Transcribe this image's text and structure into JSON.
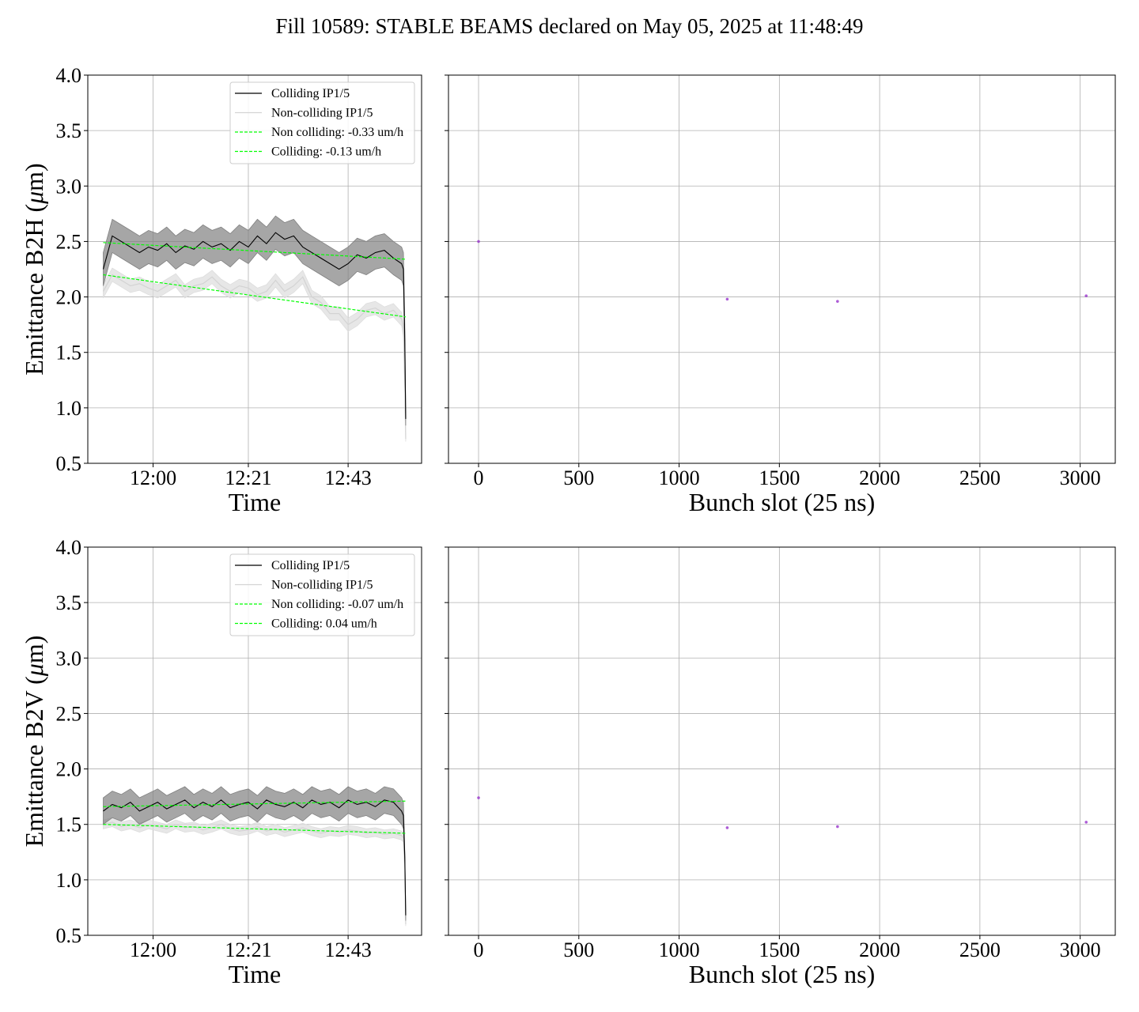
{
  "suptitle": "Fill 10589: STABLE BEAMS declared on May 05, 2025 at 11:48:49",
  "colors": {
    "colliding": "#000000",
    "colliding_band": "#808080",
    "noncolliding": "#d3d3d3",
    "noncolliding_band": "#dddddd",
    "fit": "#00ff00",
    "bunch_marker": "#9933cc",
    "grid": "#b0b0b0"
  },
  "chart_data": [
    {
      "type": "line",
      "ylabel_plain": "Emittance B2H (",
      "ylabel_mu": "μ",
      "ylabel_unit": "m)",
      "xlabel": "Time",
      "x_ticks": [
        "12:00",
        "12:21",
        "12:43"
      ],
      "x_tick_minutes": [
        0,
        21,
        43
      ],
      "xlim_minutes": [
        -14.4,
        59.2
      ],
      "ylim": [
        0.5,
        4.0
      ],
      "y_ticks": [
        "0.5",
        "1.0",
        "1.5",
        "2.0",
        "2.5",
        "3.0",
        "3.5",
        "4.0"
      ],
      "legend_position": "upper-right",
      "legend": [
        "Colliding IP1/5",
        "Non-colliding IP1/5",
        "Non colliding: -0.33 um/h",
        "Colliding: -0.13 um/h"
      ],
      "colliding": {
        "x_minutes": [
          -11,
          -9,
          -7,
          -5,
          -3,
          -1,
          1,
          3,
          5,
          7,
          9,
          11,
          13,
          15,
          17,
          19,
          21,
          23,
          25,
          27,
          29,
          31,
          33,
          35,
          37,
          39,
          41,
          43,
          45,
          47,
          49,
          51,
          53,
          54.8,
          55.2,
          55.5,
          55.7
        ],
        "y": [
          2.25,
          2.55,
          2.5,
          2.45,
          2.4,
          2.45,
          2.42,
          2.48,
          2.4,
          2.46,
          2.43,
          2.5,
          2.45,
          2.48,
          2.42,
          2.5,
          2.45,
          2.55,
          2.48,
          2.58,
          2.52,
          2.55,
          2.45,
          2.4,
          2.35,
          2.3,
          2.25,
          2.3,
          2.38,
          2.35,
          2.4,
          2.42,
          2.35,
          2.3,
          2.25,
          1.6,
          0.9
        ],
        "band": 0.15
      },
      "noncolliding": {
        "x_minutes": [
          -11,
          -9,
          -7,
          -5,
          -3,
          -1,
          1,
          3,
          5,
          7,
          9,
          11,
          13,
          15,
          17,
          19,
          21,
          23,
          25,
          27,
          29,
          31,
          33,
          35,
          37,
          39,
          41,
          43,
          45,
          47,
          49,
          51,
          53,
          54.8,
          55.2,
          55.5,
          55.7
        ],
        "y": [
          2.05,
          2.2,
          2.15,
          2.1,
          2.12,
          2.08,
          2.05,
          2.1,
          2.15,
          2.05,
          2.1,
          2.12,
          2.18,
          2.1,
          2.05,
          2.1,
          2.08,
          2.02,
          2.05,
          2.15,
          2.05,
          2.1,
          2.18,
          2.0,
          1.95,
          1.85,
          1.85,
          1.75,
          1.8,
          1.88,
          1.9,
          1.85,
          1.88,
          1.8,
          1.7,
          1.2,
          0.72
        ],
        "band": 0.06
      },
      "fit_noncolliding": {
        "x_minutes": [
          -11,
          55.7
        ],
        "y": [
          2.2,
          1.82
        ]
      },
      "fit_colliding": {
        "x_minutes": [
          -11,
          55.7
        ],
        "y": [
          2.49,
          2.34
        ]
      }
    },
    {
      "type": "scatter",
      "xlabel": "Bunch slot (25 ns)",
      "xlim": [
        -150,
        3175
      ],
      "x_ticks": [
        "0",
        "500",
        "1000",
        "1500",
        "2000",
        "2500",
        "3000"
      ],
      "x_tick_values": [
        0,
        500,
        1000,
        1500,
        2000,
        2500,
        3000
      ],
      "ylim": [
        0.5,
        4.0
      ],
      "y_tick_values": [
        0.5,
        1.0,
        1.5,
        2.0,
        2.5,
        3.0,
        3.5,
        4.0
      ],
      "points": [
        {
          "x": 0,
          "y": 2.5
        },
        {
          "x": 1240,
          "y": 1.98
        },
        {
          "x": 1790,
          "y": 1.96
        },
        {
          "x": 3030,
          "y": 2.01
        }
      ]
    },
    {
      "type": "line",
      "ylabel_plain": "Emittance B2V (",
      "ylabel_mu": "μ",
      "ylabel_unit": "m)",
      "xlabel": "Time",
      "x_ticks": [
        "12:00",
        "12:21",
        "12:43"
      ],
      "x_tick_minutes": [
        0,
        21,
        43
      ],
      "xlim_minutes": [
        -14.4,
        59.2
      ],
      "ylim": [
        0.5,
        4.0
      ],
      "y_ticks": [
        "0.5",
        "1.0",
        "1.5",
        "2.0",
        "2.5",
        "3.0",
        "3.5",
        "4.0"
      ],
      "legend_position": "upper-right",
      "legend": [
        "Colliding IP1/5",
        "Non-colliding IP1/5",
        "Non colliding: -0.07 um/h",
        "Colliding: 0.04 um/h"
      ],
      "colliding": {
        "x_minutes": [
          -11,
          -9,
          -7,
          -5,
          -3,
          -1,
          1,
          3,
          5,
          7,
          9,
          11,
          13,
          15,
          17,
          19,
          21,
          23,
          25,
          27,
          29,
          31,
          33,
          35,
          37,
          39,
          41,
          43,
          45,
          47,
          49,
          51,
          53,
          54.8,
          55.2,
          55.5,
          55.7
        ],
        "y": [
          1.62,
          1.68,
          1.65,
          1.7,
          1.62,
          1.66,
          1.7,
          1.64,
          1.68,
          1.72,
          1.65,
          1.7,
          1.66,
          1.72,
          1.65,
          1.68,
          1.7,
          1.64,
          1.72,
          1.68,
          1.66,
          1.7,
          1.65,
          1.72,
          1.68,
          1.7,
          1.65,
          1.72,
          1.68,
          1.7,
          1.66,
          1.72,
          1.7,
          1.62,
          1.58,
          1.2,
          0.68
        ],
        "band": 0.12
      },
      "noncolliding": {
        "x_minutes": [
          -11,
          -9,
          -7,
          -5,
          -3,
          -1,
          1,
          3,
          5,
          7,
          9,
          11,
          13,
          15,
          17,
          19,
          21,
          23,
          25,
          27,
          29,
          31,
          33,
          35,
          37,
          39,
          41,
          43,
          45,
          47,
          49,
          51,
          53,
          54.8,
          55.2,
          55.5,
          55.7
        ],
        "y": [
          1.5,
          1.52,
          1.48,
          1.5,
          1.47,
          1.5,
          1.48,
          1.46,
          1.5,
          1.47,
          1.48,
          1.45,
          1.47,
          1.5,
          1.46,
          1.44,
          1.45,
          1.48,
          1.44,
          1.46,
          1.43,
          1.45,
          1.47,
          1.44,
          1.42,
          1.44,
          1.43,
          1.45,
          1.44,
          1.42,
          1.43,
          1.41,
          1.42,
          1.4,
          1.38,
          1.1,
          0.6
        ],
        "band": 0.04
      },
      "fit_noncolliding": {
        "x_minutes": [
          -11,
          55.7
        ],
        "y": [
          1.5,
          1.42
        ]
      },
      "fit_colliding": {
        "x_minutes": [
          -11,
          55.7
        ],
        "y": [
          1.66,
          1.71
        ]
      }
    },
    {
      "type": "scatter",
      "xlabel": "Bunch slot (25 ns)",
      "xlim": [
        -150,
        3175
      ],
      "x_ticks": [
        "0",
        "500",
        "1000",
        "1500",
        "2000",
        "2500",
        "3000"
      ],
      "x_tick_values": [
        0,
        500,
        1000,
        1500,
        2000,
        2500,
        3000
      ],
      "ylim": [
        0.5,
        4.0
      ],
      "y_tick_values": [
        0.5,
        1.0,
        1.5,
        2.0,
        2.5,
        3.0,
        3.5,
        4.0
      ],
      "points": [
        {
          "x": 0,
          "y": 1.74
        },
        {
          "x": 1240,
          "y": 1.47
        },
        {
          "x": 1790,
          "y": 1.48
        },
        {
          "x": 3030,
          "y": 1.52
        }
      ]
    }
  ]
}
